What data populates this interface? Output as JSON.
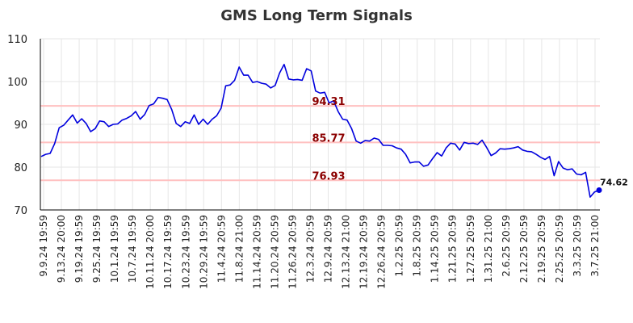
{
  "chart_data": {
    "type": "line",
    "title": "GMS Long Term Signals",
    "ylim": [
      70,
      110
    ],
    "yticks": [
      70,
      80,
      90,
      100,
      110
    ],
    "grid": true,
    "x_tick_labels": [
      "9.9.24 19:59",
      "9.13.24 20:00",
      "9.19.24 19:59",
      "9.25.24 19:59",
      "10.1.24 19:59",
      "10.7.24 19:59",
      "10.11.24 20:00",
      "10.17.24 19:59",
      "10.23.24 19:59",
      "10.29.24 19:59",
      "11.4.24 20:59",
      "11.8.24 21:00",
      "11.14.24 20:59",
      "11.20.24 20:59",
      "11.26.24 20:59",
      "12.3.24 20:59",
      "12.9.24 20:59",
      "12.13.24 21:00",
      "12.19.24 20:59",
      "12.26.24 20:59",
      "1.2.25 20:59",
      "1.8.25 20:59",
      "1.14.25 20:59",
      "1.21.25 20:59",
      "1.27.25 20:59",
      "1.31.25 21:00",
      "2.6.25 20:59",
      "2.12.25 20:59",
      "2.19.25 20:59",
      "2.25.25 20:59",
      "3.3.25 20:59",
      "3.7.25 21:00"
    ],
    "series": [
      {
        "color": "#0000dd",
        "values": [
          82.5,
          83.0,
          83.2,
          85.5,
          89.2,
          89.8,
          91.0,
          92.2,
          90.3,
          91.3,
          90.2,
          88.3,
          89.0,
          90.8,
          90.6,
          89.5,
          90.0,
          90.1,
          91.0,
          91.4,
          92.0,
          93.0,
          91.2,
          92.3,
          94.4,
          94.8,
          96.3,
          96.1,
          95.8,
          93.5,
          90.2,
          89.5,
          90.6,
          90.2,
          92.2,
          90.0,
          91.2,
          90.0,
          91.2,
          92.0,
          93.8,
          99.0,
          99.2,
          100.3,
          103.4,
          101.5,
          101.5,
          99.8,
          100.0,
          99.6,
          99.4,
          98.5,
          99.1,
          102.0,
          104.0,
          100.6,
          100.4,
          100.5,
          100.3,
          103.0,
          102.5,
          97.8,
          97.3,
          97.5,
          95.0,
          95.5,
          93.0,
          91.2,
          91.0,
          89.0,
          86.1,
          85.6,
          86.2,
          86.1,
          86.8,
          86.5,
          85.1,
          85.1,
          85.0,
          84.5,
          84.2,
          83.0,
          81.0,
          81.2,
          81.2,
          80.2,
          80.5,
          82.0,
          83.4,
          82.6,
          84.5,
          85.6,
          85.4,
          84.0,
          85.8,
          85.5,
          85.6,
          85.3,
          86.3,
          84.6,
          82.7,
          83.3,
          84.3,
          84.2,
          84.3,
          84.5,
          84.8,
          84.0,
          83.7,
          83.6,
          83.0,
          82.3,
          81.8,
          82.5,
          78.0,
          81.3,
          79.8,
          79.4,
          79.6,
          78.4,
          78.2,
          78.8,
          73.0,
          74.2,
          74.62
        ]
      }
    ],
    "signal_lines": [
      {
        "value": 94.31,
        "label": "94.31"
      },
      {
        "value": 85.77,
        "label": "85.77"
      },
      {
        "value": 76.93,
        "label": "76.93"
      }
    ],
    "last_value": {
      "value": 74.62,
      "label": "74.62"
    },
    "colors": {
      "line": "#0000dd",
      "signal_line": "#ffc0c0",
      "signal_label": "#8b0000",
      "grid": "#e6e6e6",
      "axis": "#000000"
    }
  }
}
